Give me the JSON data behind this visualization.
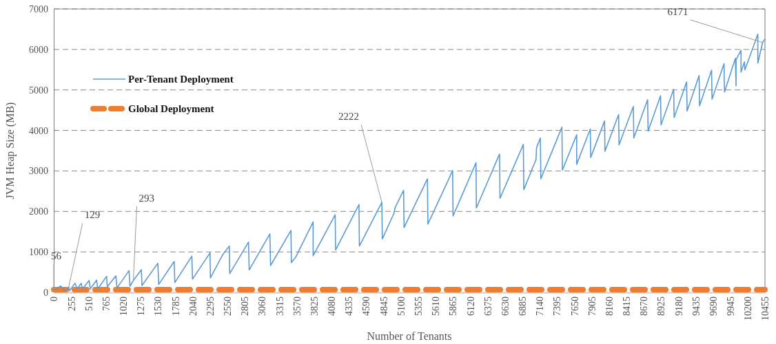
{
  "chart_data": {
    "type": "line",
    "xlabel": "Number of Tenants",
    "ylabel": "JVM Heap Size (MB)",
    "xlim": [
      0,
      10455
    ],
    "xticks": [
      0,
      255,
      510,
      765,
      1020,
      1275,
      1530,
      1785,
      2040,
      2295,
      2550,
      2805,
      3060,
      3315,
      3570,
      3825,
      4080,
      4335,
      4590,
      4845,
      5100,
      5355,
      5610,
      5865,
      6120,
      6375,
      6630,
      6885,
      7140,
      7395,
      7650,
      7905,
      8160,
      8415,
      8670,
      8925,
      9180,
      9435,
      9690,
      9945,
      10200,
      10455
    ],
    "ylim": [
      0,
      7000
    ],
    "yticks": [
      0,
      1000,
      2000,
      3000,
      4000,
      5000,
      6000,
      7000
    ],
    "grid": "y",
    "legend": "top left",
    "series": [
      {
        "name": "Per-Tenant Deployment",
        "color": "#5b9bd5",
        "line_style": "solid",
        "x": [
          0,
          103,
          163,
          220,
          230,
          313,
          347,
          403,
          420,
          520,
          537,
          630,
          647,
          777,
          787,
          913,
          930,
          1107,
          1120,
          1170,
          1287,
          1297,
          1530,
          1543,
          1770,
          1780,
          2030,
          2040,
          2297,
          2303,
          2480,
          2580,
          2587,
          2863,
          2873,
          3177,
          3187,
          3487,
          3493,
          3560,
          3813,
          3813,
          4137,
          4143,
          4487,
          4493,
          4823,
          4830,
          5000,
          5020,
          5143,
          5150,
          5493,
          5500,
          5863,
          5870,
          6207,
          6213,
          6553,
          6560,
          6903,
          6910,
          7090,
          7097,
          7153,
          7160,
          7470,
          7477,
          7687,
          7687,
          7887,
          7893,
          8097,
          8103,
          8303,
          8310,
          8520,
          8527,
          8730,
          8737,
          8920,
          8927,
          9113,
          9120,
          9303,
          9310,
          9487,
          9493,
          9670,
          9677,
          9853,
          9860,
          10020,
          10030,
          10030,
          10103,
          10103,
          10153,
          10160,
          10350,
          10350,
          10420,
          10455
        ],
        "values": [
          56,
          158,
          46,
          129,
          40,
          226,
          85,
          226,
          85,
          294,
          85,
          306,
          85,
          397,
          142,
          408,
          113,
          538,
          153,
          293,
          561,
          170,
          720,
          198,
          765,
          244,
          895,
          329,
          975,
          357,
          920,
          1145,
          465,
          1241,
          556,
          1445,
          663,
          1530,
          737,
          880,
          1739,
          906,
          1917,
          1048,
          2170,
          1145,
          2222,
          1320,
          1950,
          2100,
          2521,
          1603,
          2805,
          1688,
          3004,
          1887,
          3201,
          2086,
          3417,
          2324,
          3655,
          2538,
          3286,
          3570,
          3813,
          2805,
          4080,
          3021,
          3893,
          3162,
          4034,
          3332,
          4233,
          3485,
          4391,
          3643,
          4590,
          3813,
          4760,
          3983,
          4856,
          4137,
          5015,
          4318,
          5197,
          4476,
          5355,
          4607,
          5486,
          4771,
          5650,
          4947,
          5780,
          5100,
          5750,
          5978,
          5440,
          5695,
          5497,
          6375,
          5661,
          6171,
          6256
        ]
      },
      {
        "name": "Global Deployment",
        "color": "#ed7d31",
        "line_style": "dashed",
        "x": [
          0,
          10455
        ],
        "values": [
          70,
          70
        ]
      }
    ],
    "annotations": [
      {
        "text": "56",
        "x": 0,
        "y": 56
      },
      {
        "text": "129",
        "x": 220,
        "y": 129
      },
      {
        "text": "293",
        "x": 1170,
        "y": 293
      },
      {
        "text": "2222",
        "x": 4823,
        "y": 2222
      },
      {
        "text": "6171",
        "x": 10420,
        "y": 6171
      }
    ]
  }
}
